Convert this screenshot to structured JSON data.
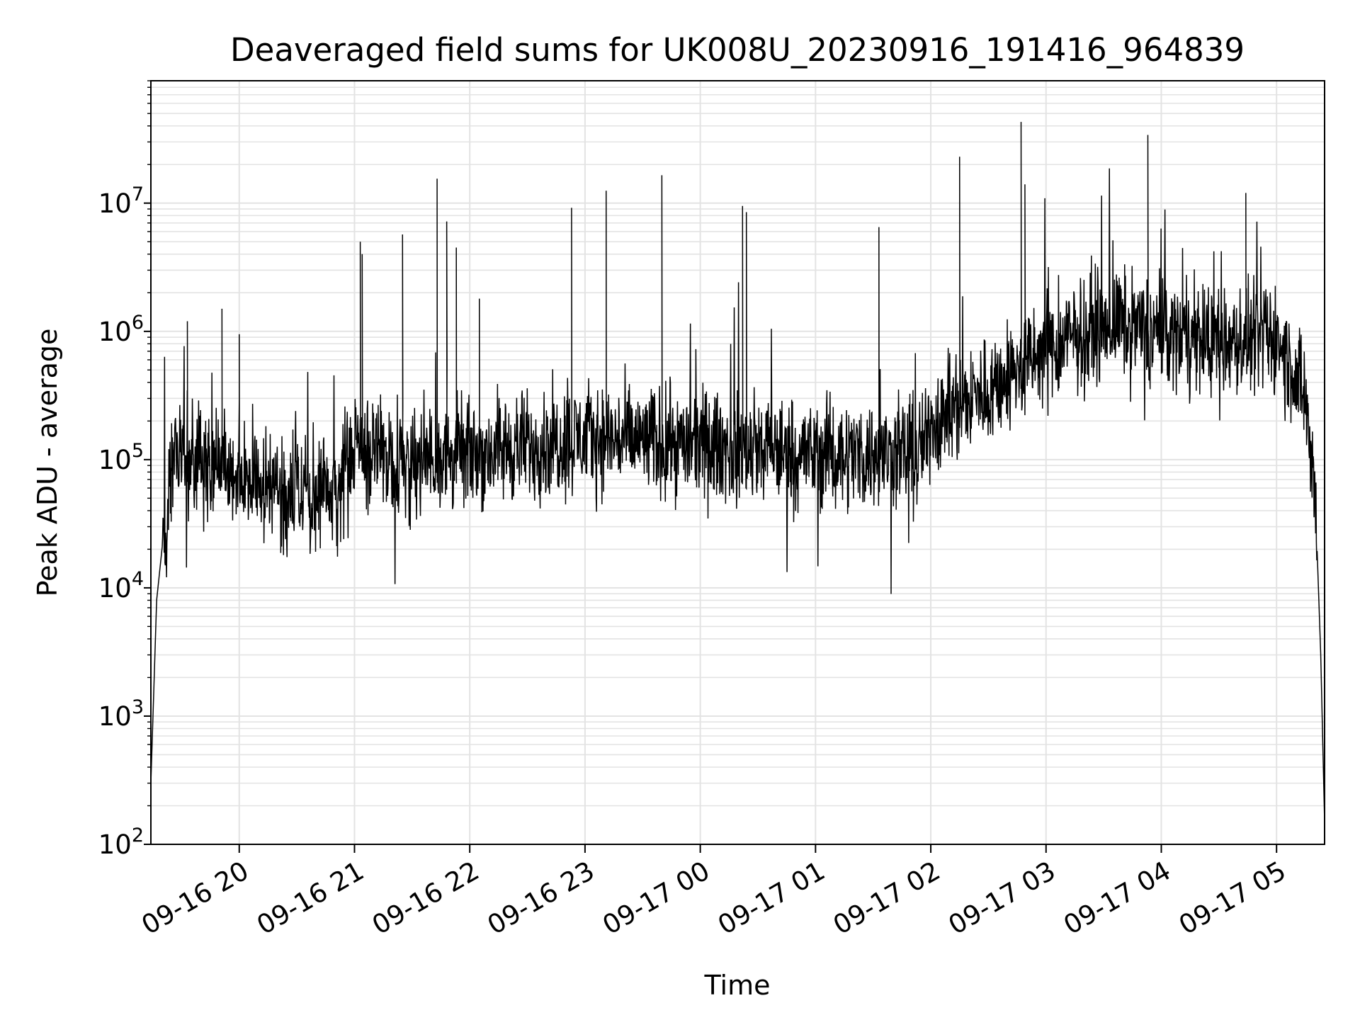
{
  "chart_data": {
    "type": "line",
    "title": "Deaveraged field sums for UK008U_20230916_191416_964839",
    "xlabel": "Time",
    "ylabel": "Peak ADU - average",
    "yscale": "log",
    "ylim": [
      100,
      90000000
    ],
    "xlim": [
      "2023-09-16 19:14",
      "2023-09-17 05:25"
    ],
    "grid": "major and minor",
    "x_ticks": [
      {
        "t": "2023-09-16 20:00",
        "label": "09-16 20"
      },
      {
        "t": "2023-09-16 21:00",
        "label": "09-16 21"
      },
      {
        "t": "2023-09-16 22:00",
        "label": "09-16 22"
      },
      {
        "t": "2023-09-16 23:00",
        "label": "09-16 23"
      },
      {
        "t": "2023-09-17 00:00",
        "label": "09-17 00"
      },
      {
        "t": "2023-09-17 01:00",
        "label": "09-17 01"
      },
      {
        "t": "2023-09-17 02:00",
        "label": "09-17 02"
      },
      {
        "t": "2023-09-17 03:00",
        "label": "09-17 03"
      },
      {
        "t": "2023-09-17 04:00",
        "label": "09-17 04"
      },
      {
        "t": "2023-09-17 05:00",
        "label": "09-17 05"
      }
    ],
    "y_ticks": [
      {
        "value": 100,
        "base": "10",
        "exp": "2"
      },
      {
        "value": 1000,
        "base": "10",
        "exp": "3"
      },
      {
        "value": 10000,
        "base": "10",
        "exp": "4"
      },
      {
        "value": 100000,
        "base": "10",
        "exp": "5"
      },
      {
        "value": 1000000,
        "base": "10",
        "exp": "6"
      },
      {
        "value": 10000000,
        "base": "10",
        "exp": "7"
      }
    ],
    "series": [
      {
        "line_color": "#000000",
        "trend": [
          [
            "2023-09-16 19:14",
            300
          ],
          [
            "2023-09-16 19:17",
            8000
          ],
          [
            "2023-09-16 19:21",
            30000
          ],
          [
            "2023-09-16 19:26",
            100000
          ],
          [
            "2023-09-16 19:40",
            90000
          ],
          [
            "2023-09-16 20:00",
            70000
          ],
          [
            "2023-09-16 20:25",
            60000
          ],
          [
            "2023-09-16 20:50",
            50000
          ],
          [
            "2023-09-16 21:00",
            120000
          ],
          [
            "2023-09-16 21:30",
            100000
          ],
          [
            "2023-09-16 22:00",
            110000
          ],
          [
            "2023-09-16 23:00",
            150000
          ],
          [
            "2023-09-17 00:00",
            130000
          ],
          [
            "2023-09-17 01:00",
            110000
          ],
          [
            "2023-09-17 01:55",
            110000
          ],
          [
            "2023-09-17 02:00",
            200000
          ],
          [
            "2023-09-17 02:30",
            350000
          ],
          [
            "2023-09-17 03:00",
            700000
          ],
          [
            "2023-09-17 03:30",
            1200000
          ],
          [
            "2023-09-17 04:00",
            1000000
          ],
          [
            "2023-09-17 04:30",
            800000
          ],
          [
            "2023-09-17 05:00",
            900000
          ],
          [
            "2023-09-17 05:15",
            300000
          ],
          [
            "2023-09-17 05:20",
            60000
          ],
          [
            "2023-09-17 05:23",
            3000
          ],
          [
            "2023-09-17 05:25",
            150
          ]
        ],
        "spikes": [
          [
            "2023-09-16 19:33",
            1200000
          ],
          [
            "2023-09-16 19:51",
            1500000
          ],
          [
            "2023-09-16 20:00",
            950000
          ],
          [
            "2023-09-16 21:03",
            5000000
          ],
          [
            "2023-09-16 21:04",
            4000000
          ],
          [
            "2023-09-16 21:25",
            5700000
          ],
          [
            "2023-09-16 21:43",
            15500000
          ],
          [
            "2023-09-16 21:48",
            7200000
          ],
          [
            "2023-09-16 21:53",
            4500000
          ],
          [
            "2023-09-16 22:05",
            1800000
          ],
          [
            "2023-09-16 22:53",
            9200000
          ],
          [
            "2023-09-16 23:11",
            12500000
          ],
          [
            "2023-09-16 23:40",
            16500000
          ],
          [
            "2023-09-17 00:22",
            9500000
          ],
          [
            "2023-09-17 00:24",
            8500000
          ],
          [
            "2023-09-17 01:33",
            6500000
          ],
          [
            "2023-09-17 02:15",
            23000000
          ],
          [
            "2023-09-17 02:47",
            43000000
          ],
          [
            "2023-09-17 02:49",
            14000000
          ],
          [
            "2023-09-17 03:53",
            34000000
          ],
          [
            "2023-09-17 04:44",
            12000000
          ]
        ]
      }
    ]
  }
}
